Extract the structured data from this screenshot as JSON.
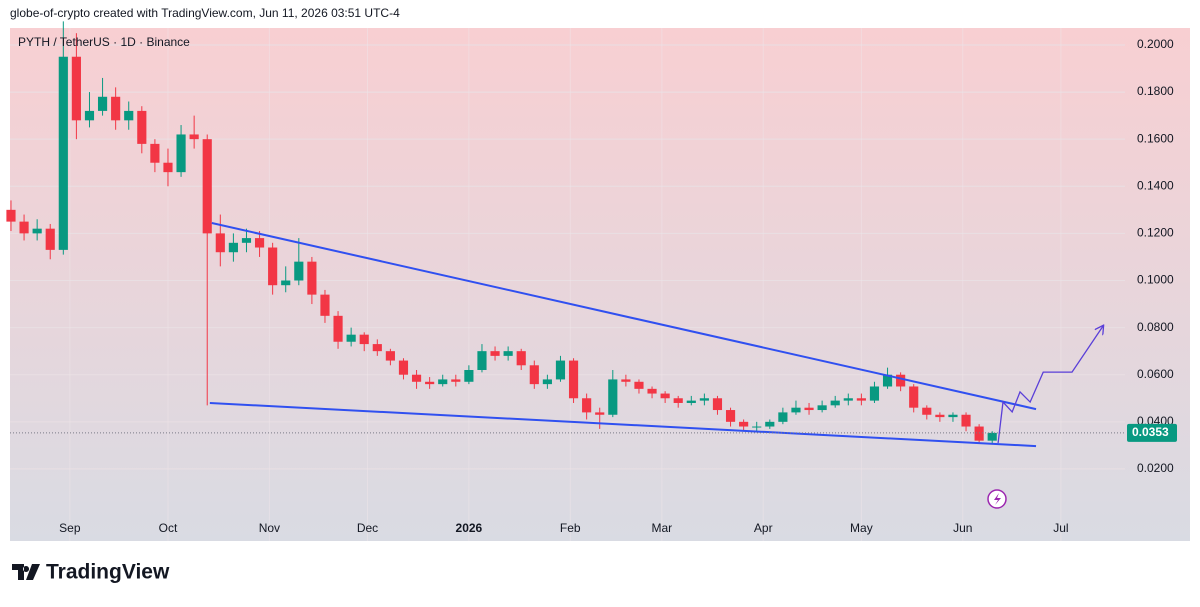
{
  "chart_data": {
    "type": "candlestick",
    "attribution": "globe-of-crypto created with TradingView.com, Jun 11, 2026 03:51 UTC-4",
    "title": "PYTH / TetherUS · 1D · Binance",
    "brand": "TradingView",
    "x": [
      -18,
      -14,
      -10,
      -6,
      -2,
      2,
      6,
      10,
      14,
      18,
      22,
      26,
      30,
      34,
      38,
      42,
      46,
      50,
      54,
      58,
      62,
      66,
      70,
      74,
      78,
      82,
      86,
      90,
      94,
      98,
      102,
      106,
      110,
      114,
      118,
      122,
      126,
      130,
      134,
      138,
      142,
      146,
      150,
      154,
      158,
      162,
      166,
      170,
      174,
      178,
      182,
      186,
      190,
      194,
      198,
      202,
      206,
      210,
      214,
      218,
      222,
      226,
      230,
      234,
      238,
      242,
      246,
      250,
      254,
      258,
      262,
      266,
      270,
      274,
      278,
      282
    ],
    "open": [
      0.13,
      0.125,
      0.12,
      0.122,
      0.113,
      0.195,
      0.168,
      0.172,
      0.178,
      0.168,
      0.172,
      0.158,
      0.15,
      0.146,
      0.162,
      0.16,
      0.12,
      0.112,
      0.116,
      0.118,
      0.114,
      0.098,
      0.1,
      0.108,
      0.094,
      0.085,
      0.074,
      0.077,
      0.073,
      0.07,
      0.066,
      0.06,
      0.057,
      0.056,
      0.058,
      0.057,
      0.062,
      0.07,
      0.068,
      0.07,
      0.064,
      0.056,
      0.058,
      0.066,
      0.05,
      0.044,
      0.043,
      0.058,
      0.057,
      0.054,
      0.052,
      0.05,
      0.048,
      0.049,
      0.05,
      0.045,
      0.04,
      0.038,
      0.038,
      0.04,
      0.044,
      0.046,
      0.045,
      0.047,
      0.049,
      0.05,
      0.049,
      0.055,
      0.06,
      0.055,
      0.046,
      0.043,
      0.042,
      0.043,
      0.038,
      0.032
    ],
    "high": [
      0.134,
      0.128,
      0.126,
      0.124,
      0.21,
      0.205,
      0.18,
      0.186,
      0.182,
      0.176,
      0.174,
      0.16,
      0.156,
      0.166,
      0.17,
      0.162,
      0.128,
      0.12,
      0.122,
      0.121,
      0.116,
      0.106,
      0.118,
      0.11,
      0.096,
      0.087,
      0.08,
      0.078,
      0.075,
      0.071,
      0.067,
      0.062,
      0.059,
      0.06,
      0.06,
      0.064,
      0.073,
      0.072,
      0.072,
      0.071,
      0.066,
      0.06,
      0.068,
      0.067,
      0.052,
      0.046,
      0.062,
      0.06,
      0.058,
      0.055,
      0.053,
      0.051,
      0.051,
      0.052,
      0.051,
      0.046,
      0.041,
      0.04,
      0.041,
      0.046,
      0.049,
      0.048,
      0.049,
      0.051,
      0.052,
      0.052,
      0.057,
      0.063,
      0.061,
      0.056,
      0.047,
      0.044,
      0.044,
      0.044,
      0.039,
      0.036
    ],
    "low": [
      0.121,
      0.117,
      0.117,
      0.109,
      0.111,
      0.16,
      0.165,
      0.17,
      0.164,
      0.164,
      0.154,
      0.146,
      0.14,
      0.144,
      0.156,
      0.047,
      0.106,
      0.108,
      0.112,
      0.11,
      0.094,
      0.095,
      0.098,
      0.09,
      0.082,
      0.071,
      0.072,
      0.07,
      0.068,
      0.064,
      0.058,
      0.054,
      0.054,
      0.055,
      0.055,
      0.056,
      0.061,
      0.066,
      0.066,
      0.062,
      0.054,
      0.054,
      0.057,
      0.048,
      0.041,
      0.037,
      0.042,
      0.055,
      0.052,
      0.05,
      0.048,
      0.046,
      0.047,
      0.047,
      0.043,
      0.038,
      0.036,
      0.036,
      0.037,
      0.039,
      0.043,
      0.043,
      0.044,
      0.046,
      0.047,
      0.047,
      0.048,
      0.054,
      0.053,
      0.044,
      0.041,
      0.04,
      0.04,
      0.036,
      0.031,
      0.031
    ],
    "close": [
      0.125,
      0.12,
      0.122,
      0.113,
      0.195,
      0.168,
      0.172,
      0.178,
      0.168,
      0.172,
      0.158,
      0.15,
      0.146,
      0.162,
      0.16,
      0.12,
      0.112,
      0.116,
      0.118,
      0.114,
      0.098,
      0.1,
      0.108,
      0.094,
      0.085,
      0.074,
      0.077,
      0.073,
      0.07,
      0.066,
      0.06,
      0.057,
      0.056,
      0.058,
      0.057,
      0.062,
      0.07,
      0.068,
      0.07,
      0.064,
      0.056,
      0.058,
      0.066,
      0.05,
      0.044,
      0.043,
      0.058,
      0.057,
      0.054,
      0.052,
      0.05,
      0.048,
      0.049,
      0.05,
      0.045,
      0.04,
      0.038,
      0.038,
      0.04,
      0.044,
      0.046,
      0.045,
      0.047,
      0.049,
      0.05,
      0.049,
      0.055,
      0.06,
      0.055,
      0.046,
      0.043,
      0.042,
      0.043,
      0.038,
      0.032,
      0.0353
    ],
    "up_color": "#089981",
    "down_color": "#f23645",
    "xlim": [
      -18.3,
      322.6
    ],
    "xticks": [
      {
        "value": 0,
        "label": "Sep"
      },
      {
        "value": 30,
        "label": "Oct"
      },
      {
        "value": 61,
        "label": "Nov"
      },
      {
        "value": 91,
        "label": "Dec"
      },
      {
        "value": 122,
        "label": "2026"
      },
      {
        "value": 153,
        "label": "Feb"
      },
      {
        "value": 181,
        "label": "Mar"
      },
      {
        "value": 212,
        "label": "Apr"
      },
      {
        "value": 242,
        "label": "May"
      },
      {
        "value": 273,
        "label": "Jun"
      },
      {
        "value": 303,
        "label": "Jul"
      }
    ],
    "ylim": [
      -0.0106,
      0.2072
    ],
    "yticks": [
      {
        "value": 0.02,
        "label": "0.0200"
      },
      {
        "value": 0.04,
        "label": "0.0400"
      },
      {
        "value": 0.06,
        "label": "0.0600"
      },
      {
        "value": 0.08,
        "label": "0.0800"
      },
      {
        "value": 0.1,
        "label": "0.1000"
      },
      {
        "value": 0.12,
        "label": "0.1200"
      },
      {
        "value": 0.14,
        "label": "0.1400"
      },
      {
        "value": 0.16,
        "label": "0.1600"
      },
      {
        "value": 0.18,
        "label": "0.1800"
      },
      {
        "value": 0.2,
        "label": "0.2000"
      }
    ],
    "grid": true,
    "last_price": {
      "value": 0.0353,
      "label": "0.0353"
    },
    "trendlines": [
      {
        "color": "#3050f0",
        "x": [
          43.4,
          295.4
        ],
        "y": [
          0.1244,
          0.0454
        ]
      },
      {
        "color": "#3050f0",
        "x": [
          42.8,
          295.4
        ],
        "y": [
          0.048,
          0.0297
        ]
      }
    ],
    "projection": {
      "color": "#5a3fd8",
      "x": [
        283.8,
        285.3,
        288.1,
        290.5,
        293.6,
        297.6,
        306.4,
        315.9
      ],
      "y": [
        0.031,
        0.0484,
        0.0442,
        0.0527,
        0.0484,
        0.0611,
        0.0611,
        0.0807
      ]
    }
  }
}
